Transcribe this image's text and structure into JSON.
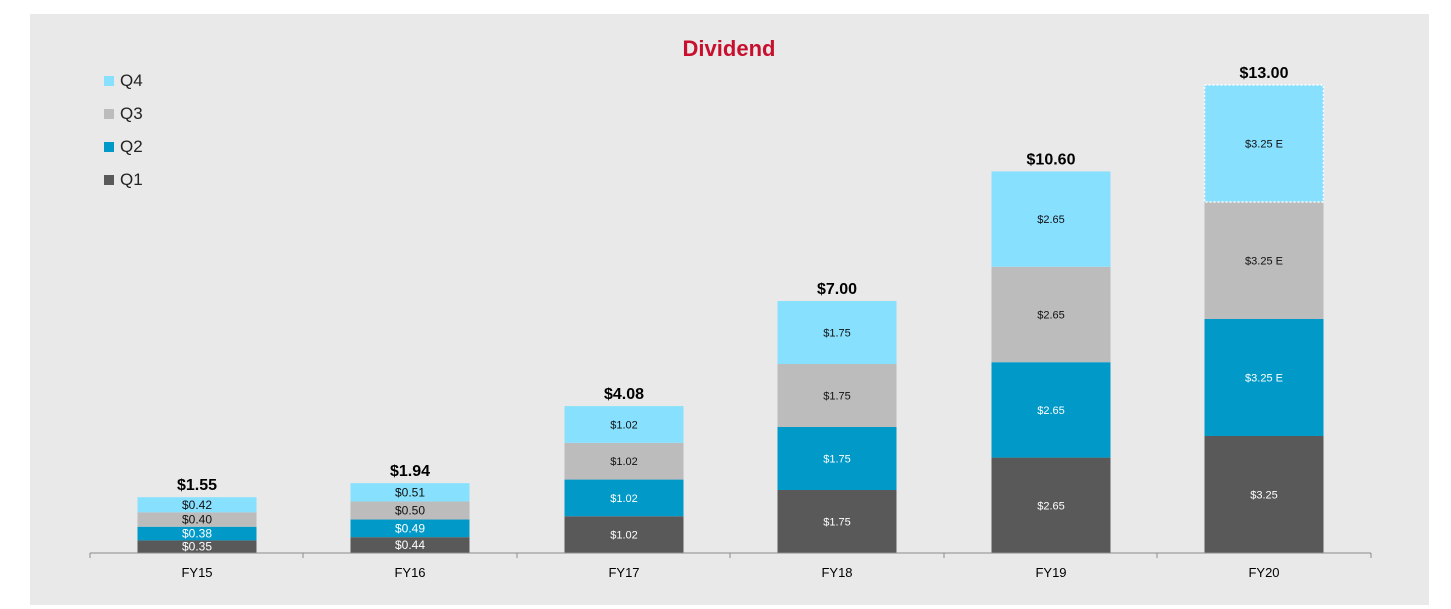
{
  "chart_data": {
    "type": "bar",
    "stacked": true,
    "title": "Dividend",
    "xlabel": "",
    "ylabel": "",
    "categories": [
      "FY15",
      "FY16",
      "FY17",
      "FY18",
      "FY19",
      "FY20"
    ],
    "series": [
      {
        "name": "Q1",
        "color": "#595959",
        "values": [
          0.35,
          0.44,
          1.02,
          1.75,
          2.65,
          3.25
        ],
        "labels": [
          "$0.35",
          "$0.44",
          "$1.02",
          "$1.75",
          "$2.65",
          "$3.25"
        ]
      },
      {
        "name": "Q2",
        "color": "#0099c8",
        "values": [
          0.38,
          0.49,
          1.02,
          1.75,
          2.65,
          3.25
        ],
        "labels": [
          "$0.38",
          "$0.49",
          "$1.02",
          "$1.75",
          "$2.65",
          "$3.25 E"
        ]
      },
      {
        "name": "Q3",
        "color": "#bcbcbc",
        "values": [
          0.4,
          0.5,
          1.02,
          1.75,
          2.65,
          3.25
        ],
        "labels": [
          "$0.40",
          "$0.50",
          "$1.02",
          "$1.75",
          "$2.65",
          "$3.25 E"
        ]
      },
      {
        "name": "Q4",
        "color": "#88e0ff",
        "values": [
          0.42,
          0.51,
          1.02,
          1.75,
          2.65,
          3.25
        ],
        "labels": [
          "$0.42",
          "$0.51",
          "$1.02",
          "$1.75",
          "$2.65",
          "$3.25 E"
        ]
      }
    ],
    "totals": [
      1.55,
      1.94,
      4.08,
      7.0,
      10.6,
      13.0
    ],
    "total_labels": [
      "$1.55",
      "$1.94",
      "$4.08",
      "$7.00",
      "$10.60",
      "$13.00"
    ],
    "estimated": [
      [
        false,
        false,
        false,
        false,
        false,
        false
      ],
      [
        false,
        false,
        false,
        false,
        false,
        true
      ],
      [
        false,
        false,
        false,
        false,
        false,
        true
      ],
      [
        false,
        false,
        false,
        false,
        false,
        true
      ]
    ],
    "ylim": [
      0,
      13.0
    ],
    "grid": false,
    "legend": "top-left",
    "legend_order": [
      "Q4",
      "Q3",
      "Q2",
      "Q1"
    ],
    "title_color": "#c8102e"
  }
}
